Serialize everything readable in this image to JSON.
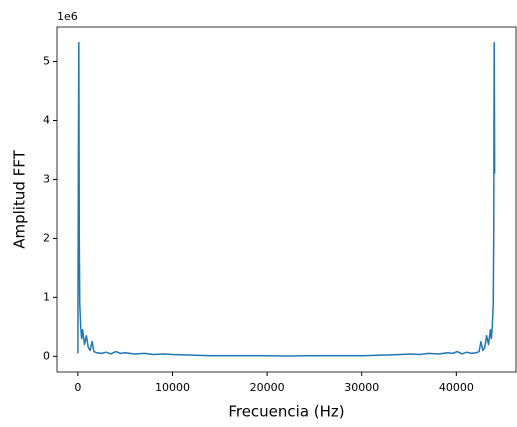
{
  "chart_data": {
    "type": "line",
    "x_label": "Frecuencia (Hz)",
    "y_label": "Amplitud FFT",
    "y_offset_text": "1e6",
    "x": [
      0,
      50,
      100,
      150,
      200,
      300,
      400,
      500,
      700,
      900,
      1100,
      1300,
      1500,
      1700,
      2000,
      2500,
      3000,
      3500,
      4000,
      4500,
      5000,
      6000,
      7000,
      8000,
      9000,
      10000,
      12000,
      14000,
      16000,
      18000,
      20000,
      22050,
      24100,
      26100,
      28100,
      30100,
      32100,
      34100,
      35100,
      36100,
      37100,
      38100,
      39100,
      39600,
      40100,
      40600,
      41100,
      41600,
      42100,
      42400,
      42600,
      42800,
      43000,
      43200,
      43400,
      43600,
      43700,
      43800,
      43900,
      43950,
      44000,
      44050
    ],
    "values": [
      0.05,
      3.1,
      5.32,
      2.0,
      0.9,
      0.5,
      0.3,
      0.45,
      0.2,
      0.35,
      0.15,
      0.1,
      0.25,
      0.08,
      0.06,
      0.05,
      0.07,
      0.04,
      0.08,
      0.05,
      0.06,
      0.04,
      0.05,
      0.03,
      0.04,
      0.03,
      0.02,
      0.01,
      0.01,
      0.01,
      0.01,
      0.005,
      0.01,
      0.01,
      0.01,
      0.01,
      0.02,
      0.03,
      0.04,
      0.03,
      0.05,
      0.04,
      0.06,
      0.05,
      0.08,
      0.04,
      0.07,
      0.05,
      0.06,
      0.08,
      0.25,
      0.1,
      0.15,
      0.35,
      0.2,
      0.45,
      0.3,
      0.5,
      0.9,
      2.0,
      5.32,
      3.1
    ],
    "color": "#1f77b4",
    "xlim": [
      -2205,
      46305
    ],
    "xticks": [
      0,
      10000,
      20000,
      30000,
      40000
    ],
    "ylim": [
      -0.266,
      5.586
    ],
    "yticks": [
      0,
      1,
      2,
      3,
      4,
      5
    ],
    "grid": false
  }
}
